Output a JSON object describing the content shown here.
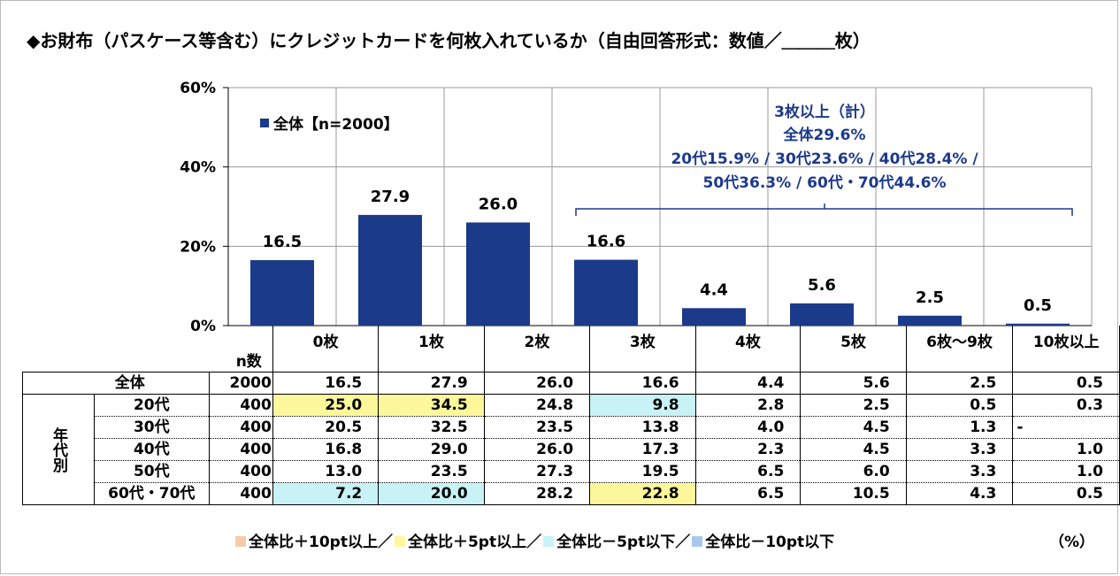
{
  "title": "◆お財布（パスケース等含む）にクレジットカードを何枚入れているか（自由回答形式：数値／＿＿＿枚）",
  "chart_data": {
    "type": "bar",
    "categories": [
      "0枚",
      "1枚",
      "2枚",
      "3枚",
      "4枚",
      "5枚",
      "6枚～9枚",
      "10枚以上"
    ],
    "series": [
      {
        "name": "全体【n=2000】",
        "values": [
          16.5,
          27.9,
          26.0,
          16.6,
          4.4,
          5.6,
          2.5,
          0.5
        ]
      }
    ],
    "ylim": [
      0,
      60
    ],
    "yticks": [
      "0%",
      "20%",
      "40%",
      "60%"
    ],
    "ytick_values": [
      0,
      20,
      40,
      60
    ],
    "bar_color": "#1c3a8a",
    "legend_position": "top-left",
    "annotation": [
      "3枚以上（計）",
      "全体29.6%",
      "20代15.9% / 30代23.6% / 40代28.4% /",
      "50代36.3% / 60代・70代44.6%"
    ],
    "annotation_color": "#1c3a8a"
  },
  "table": {
    "n_header": "n数",
    "group_label": "年代別",
    "rows": [
      {
        "label": "全体",
        "n": "2000",
        "values": [
          "16.5",
          "27.9",
          "26.0",
          "16.6",
          "4.4",
          "5.6",
          "2.5",
          "0.5"
        ],
        "hl": [
          "",
          "",
          "",
          "",
          "",
          "",
          "",
          ""
        ]
      },
      {
        "label": "20代",
        "n": "400",
        "values": [
          "25.0",
          "34.5",
          "24.8",
          "9.8",
          "2.8",
          "2.5",
          "0.5",
          "0.3"
        ],
        "hl": [
          "y",
          "y",
          "",
          "c",
          "",
          "",
          "",
          ""
        ]
      },
      {
        "label": "30代",
        "n": "400",
        "values": [
          "20.5",
          "32.5",
          "23.5",
          "13.8",
          "4.0",
          "4.5",
          "1.3",
          "-"
        ],
        "hl": [
          "",
          "",
          "",
          "",
          "",
          "",
          "",
          ""
        ]
      },
      {
        "label": "40代",
        "n": "400",
        "values": [
          "16.8",
          "29.0",
          "26.0",
          "17.3",
          "2.3",
          "4.5",
          "3.3",
          "1.0"
        ],
        "hl": [
          "",
          "",
          "",
          "",
          "",
          "",
          "",
          ""
        ]
      },
      {
        "label": "50代",
        "n": "400",
        "values": [
          "13.0",
          "23.5",
          "27.3",
          "19.5",
          "6.5",
          "6.0",
          "3.3",
          "1.0"
        ],
        "hl": [
          "",
          "",
          "",
          "",
          "",
          "",
          "",
          ""
        ]
      },
      {
        "label": "60代・70代",
        "n": "400",
        "values": [
          "7.2",
          "20.0",
          "28.2",
          "22.8",
          "6.5",
          "10.5",
          "4.3",
          "0.5"
        ],
        "hl": [
          "c",
          "c",
          "",
          "y",
          "",
          "",
          "",
          ""
        ]
      }
    ]
  },
  "legend": [
    {
      "label": "全体比＋10pt以上／",
      "color": "#f8cba8"
    },
    {
      "label": "全体比＋5pt以上／",
      "color": "#fdf79b"
    },
    {
      "label": "全体比－5pt以下／",
      "color": "#c8f2f5"
    },
    {
      "label": "全体比－10pt以下",
      "color": "#a6c8ee"
    }
  ],
  "unit": "（%）",
  "highlight_colors": {
    "y": "#fdf79b",
    "c": "#c8f2f5"
  }
}
